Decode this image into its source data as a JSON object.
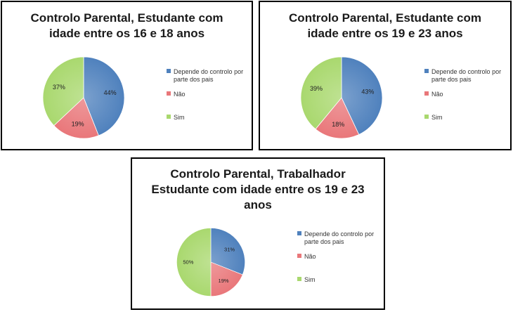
{
  "colors": {
    "Depende": "#4f81bd",
    "Nao": "#e9777a",
    "Sim": "#a9d86e"
  },
  "chart_data": [
    {
      "type": "pie",
      "title": [
        "Controlo Parental, Estudante com",
        "idade entre os 16 e 18 anos"
      ],
      "categories": [
        "Depende do controlo por parte dos pais",
        "Não",
        "Sim"
      ],
      "values": [
        44,
        19,
        37
      ],
      "labels": [
        "44%",
        "19%",
        "37%"
      ],
      "legend": [
        "Depende do controlo por",
        "parte dos pais",
        "Não",
        "Sim"
      ],
      "legend_position": "right"
    },
    {
      "type": "pie",
      "title": [
        "Controlo Parental, Estudante com",
        "idade entre os 19 e 23 anos"
      ],
      "categories": [
        "Depende do controlo por parte dos pais",
        "Não",
        "Sim"
      ],
      "values": [
        43,
        18,
        39
      ],
      "labels": [
        "43%",
        "18%",
        "39%"
      ],
      "legend": [
        "Depende do controlo por",
        "parte dos pais",
        "Não",
        "Sim"
      ],
      "legend_position": "right"
    },
    {
      "type": "pie",
      "title": [
        "Controlo Parental, Trabalhador",
        "Estudante com idade entre os 19 e 23",
        "anos"
      ],
      "categories": [
        "Depende do controlo por parte dos pais",
        "Não",
        "Sim"
      ],
      "values": [
        31,
        19,
        50
      ],
      "labels": [
        "31%",
        "19%",
        "50%"
      ],
      "legend": [
        "Depende do controlo por",
        "parte dos pais",
        "Não",
        "Sim"
      ],
      "legend_position": "right"
    }
  ]
}
